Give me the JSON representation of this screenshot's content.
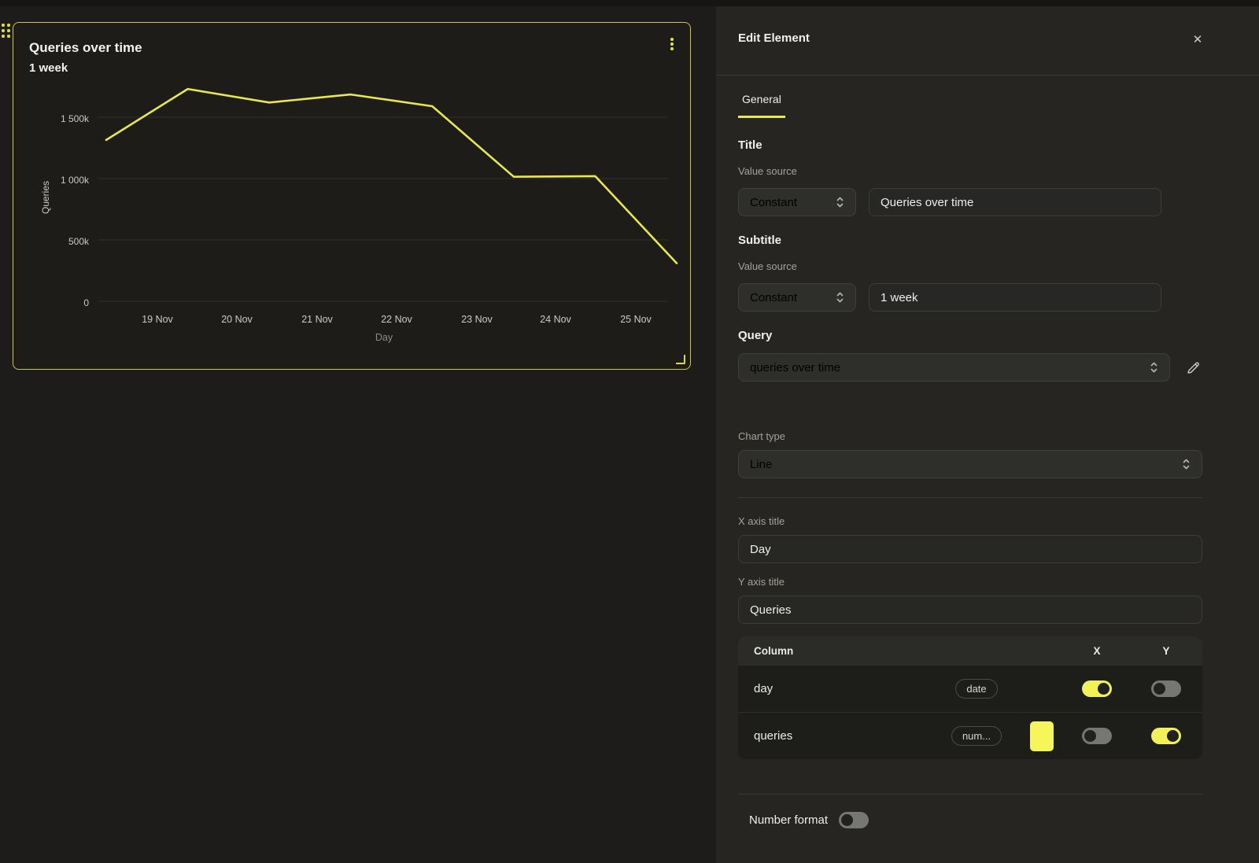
{
  "accent": "#e9e94d",
  "chart_data": {
    "type": "line",
    "title": "Queries over time",
    "subtitle": "1 week",
    "xlabel": "Day",
    "ylabel": "Queries",
    "x_tick_labels": [
      "19 Nov",
      "20 Nov",
      "21 Nov",
      "22 Nov",
      "23 Nov",
      "24 Nov",
      "25 Nov"
    ],
    "y_tick_labels": [
      "0",
      "500k",
      "1 000k",
      "1 500k"
    ],
    "ylim": [
      0,
      1900000
    ],
    "grid": true,
    "line_color": "#e8e84e",
    "legend": "none",
    "series": [
      {
        "name": "queries",
        "values": [
          1315000,
          1730000,
          1620000,
          1685000,
          1590000,
          1015000,
          1020000,
          310000
        ]
      }
    ]
  },
  "panel": {
    "title": "Edit Element",
    "close_icon": "✕",
    "tabs": [
      {
        "label": "General",
        "active": true
      }
    ],
    "sections": {
      "title": {
        "heading": "Title",
        "value_source_label": "Value source",
        "source": "Constant",
        "value": "Queries over time"
      },
      "subtitle": {
        "heading": "Subtitle",
        "value_source_label": "Value source",
        "source": "Constant",
        "value": "1 week"
      },
      "query": {
        "heading": "Query",
        "value": "queries over time"
      },
      "chart_type": {
        "label": "Chart type",
        "value": "Line"
      },
      "x_axis": {
        "label": "X axis title",
        "value": "Day"
      },
      "y_axis": {
        "label": "Y axis title",
        "value": "Queries"
      },
      "columns_table": {
        "headers": {
          "column": "Column",
          "x": "X",
          "y": "Y"
        },
        "rows": [
          {
            "name": "day",
            "type": "date",
            "x_on": true,
            "y_on": false,
            "swatch": null
          },
          {
            "name": "queries",
            "type": "num...",
            "x_on": false,
            "y_on": true,
            "swatch": "#f6f65a"
          }
        ]
      },
      "number_format": {
        "label": "Number format",
        "on": false
      }
    }
  }
}
